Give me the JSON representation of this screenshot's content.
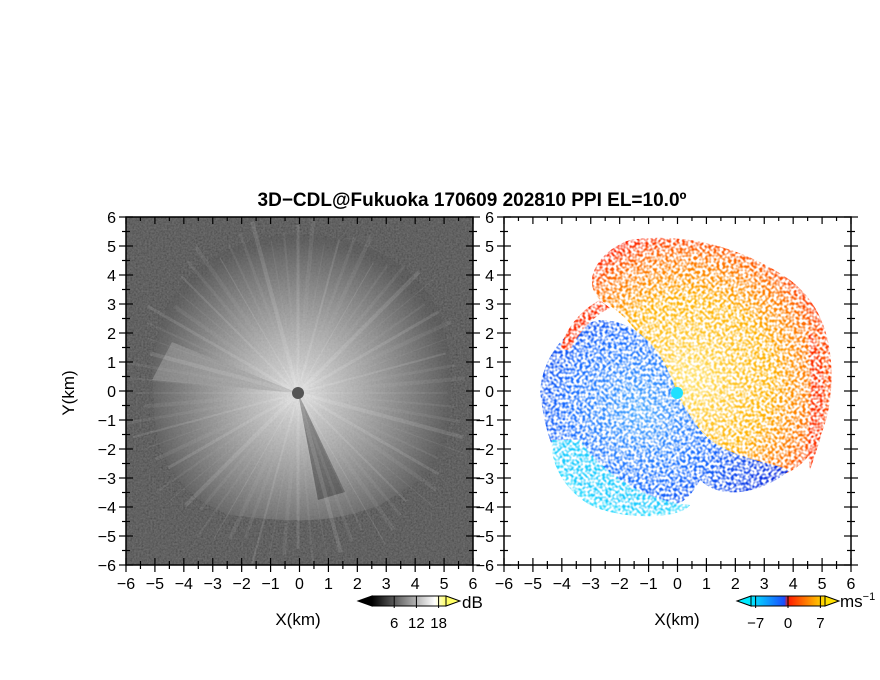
{
  "chart_data": {
    "title": "3D−CDL@Fukuoka 170609 202810 PPI EL=10.0º",
    "panels": [
      {
        "type": "heatmap",
        "quantity": "intensity",
        "xlabel": "X(km)",
        "ylabel": "Y(km)",
        "xlim": [
          -6,
          6
        ],
        "ylim": [
          -6,
          6
        ],
        "xticks": [
          "−6",
          "−5",
          "−4",
          "−3",
          "−2",
          "−1",
          "0",
          "1",
          "2",
          "3",
          "4",
          "5",
          "6"
        ],
        "yticks": [
          "6",
          "5",
          "4",
          "3",
          "2",
          "1",
          "0",
          "−1",
          "−2",
          "−3",
          "−4",
          "−5",
          "−6"
        ],
        "colormap": "gray",
        "colorbar": {
          "unit": "dB",
          "ticks": [
            6,
            12,
            18
          ],
          "tick_labels": [
            "6",
            "12",
            "18"
          ],
          "range": [
            0,
            20
          ],
          "extend": "both",
          "colors": [
            "#000000",
            "#ffffff",
            "#ffff55"
          ]
        }
      },
      {
        "type": "heatmap",
        "quantity": "radial velocity",
        "xlabel": "X(km)",
        "ylabel": "",
        "xlim": [
          -6,
          6
        ],
        "ylim": [
          -6,
          6
        ],
        "xticks": [
          "−6",
          "−5",
          "−4",
          "−3",
          "−2",
          "−1",
          "0",
          "1",
          "2",
          "3",
          "4",
          "5",
          "6"
        ],
        "yticks": [
          "6",
          "5",
          "4",
          "3",
          "2",
          "1",
          "0",
          "−1",
          "−2",
          "−3",
          "−4",
          "−5",
          "−6"
        ],
        "colormap": "diverging cyan-blue / red-yellow",
        "colorbar": {
          "unit": "ms",
          "unit_exponent": "−1",
          "ticks": [
            -7,
            0,
            7
          ],
          "tick_labels": [
            "−7",
            "0",
            "7"
          ],
          "range": [
            -8,
            8
          ],
          "extend": "both",
          "colors": [
            "#00e5ff",
            "#1a5cff",
            "#ff2a00",
            "#ffd200"
          ]
        }
      }
    ]
  }
}
